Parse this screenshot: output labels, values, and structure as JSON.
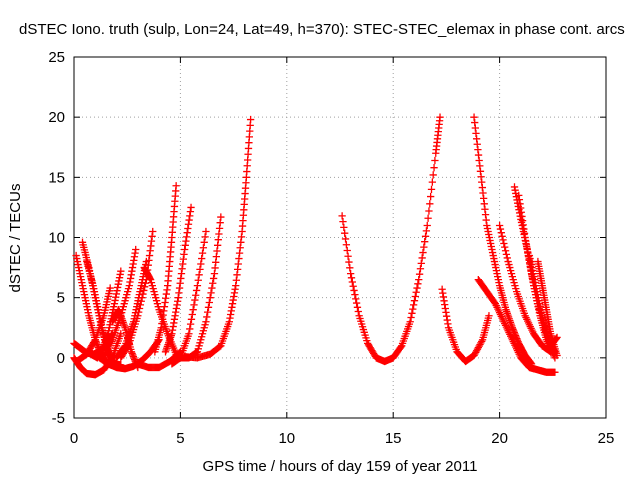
{
  "chart_data": {
    "type": "scatter",
    "title": "dSTEC Iono. truth (sulp, Lon=24, Lat=49, h=370): STEC-STEC_elemax in phase cont. arcs",
    "xlabel": "GPS time / hours of day 159 of year 2011",
    "ylabel": "dSTEC  / TECUs",
    "xlim": [
      0,
      25
    ],
    "ylim": [
      -5,
      25
    ],
    "x_ticks": [
      "0",
      "5",
      "10",
      "15",
      "20",
      "25"
    ],
    "y_ticks": [
      "-5",
      "0",
      "5",
      "10",
      "15",
      "20",
      "25"
    ],
    "grid": true,
    "marker": "+",
    "series_color": "#ff0000",
    "series": [
      {
        "x": [
          0.0,
          0.3,
          0.6,
          0.9,
          1.2,
          1.5,
          1.8
        ],
        "y": [
          1.2,
          0.8,
          0.4,
          0.3,
          0.5,
          1.1,
          2.0
        ]
      },
      {
        "x": [
          0.0,
          0.3,
          0.6,
          1.0,
          1.4,
          1.8,
          2.2
        ],
        "y": [
          0.0,
          -0.8,
          -1.3,
          -1.4,
          -1.0,
          0.0,
          2.0
        ]
      },
      {
        "x": [
          0.1,
          0.4,
          0.7,
          1.0,
          1.3,
          1.6,
          1.9
        ],
        "y": [
          8.5,
          6.0,
          3.5,
          1.5,
          0.2,
          -0.5,
          0.2
        ]
      },
      {
        "x": [
          0.4,
          0.7,
          1.0,
          1.3,
          1.6,
          1.9,
          2.2
        ],
        "y": [
          9.6,
          7.5,
          5.0,
          2.5,
          0.5,
          -0.5,
          -0.6
        ]
      },
      {
        "x": [
          0.6,
          0.9,
          1.2,
          1.5,
          1.8
        ],
        "y": [
          8.0,
          6.0,
          3.5,
          1.0,
          -0.2
        ]
      },
      {
        "x": [
          0.2,
          0.6,
          1.0,
          1.4,
          1.7
        ],
        "y": [
          -0.2,
          0.3,
          1.5,
          3.5,
          5.8
        ]
      },
      {
        "x": [
          0.8,
          1.1,
          1.3,
          1.6,
          1.9,
          2.2
        ],
        "y": [
          0.3,
          0.0,
          0.5,
          2.0,
          4.5,
          7.2
        ]
      },
      {
        "x": [
          1.2,
          1.6,
          2.0,
          2.4,
          2.8,
          3.2,
          3.6,
          4.0
        ],
        "y": [
          0.0,
          -0.5,
          -0.8,
          -0.9,
          -0.7,
          -0.2,
          0.5,
          1.5
        ]
      },
      {
        "x": [
          1.4,
          1.8,
          2.2,
          2.6,
          2.9
        ],
        "y": [
          0.0,
          1.5,
          3.5,
          6.0,
          9.0
        ]
      },
      {
        "x": [
          2.0,
          2.4,
          2.8,
          3.1,
          3.4
        ],
        "y": [
          0.0,
          1.0,
          3.0,
          5.5,
          8.0
        ]
      },
      {
        "x": [
          2.2,
          2.6,
          3.0,
          3.4,
          3.7
        ],
        "y": [
          0.0,
          1.2,
          3.5,
          6.5,
          10.5
        ]
      },
      {
        "x": [
          1.8,
          2.1,
          2.4,
          2.7,
          3.0
        ],
        "y": [
          3.0,
          4.0,
          2.5,
          0.5,
          -0.8
        ]
      },
      {
        "x": [
          3.3,
          3.6,
          4.0,
          4.4,
          4.8
        ],
        "y": [
          7.5,
          6.5,
          4.0,
          2.0,
          0.3
        ]
      },
      {
        "x": [
          3.0,
          3.5,
          4.0,
          4.5,
          5.0
        ],
        "y": [
          -0.5,
          -0.8,
          -0.8,
          -0.3,
          0.5
        ]
      },
      {
        "x": [
          3.8,
          4.1,
          4.4,
          4.6,
          4.8
        ],
        "y": [
          0.5,
          2.5,
          6.0,
          10.0,
          14.3
        ]
      },
      {
        "x": [
          4.3,
          4.6,
          4.9,
          5.2,
          5.5
        ],
        "y": [
          0.5,
          2.0,
          5.0,
          9.0,
          12.5
        ]
      },
      {
        "x": [
          4.6,
          5.0,
          5.4,
          5.8,
          6.2
        ],
        "y": [
          -0.5,
          0.0,
          2.0,
          6.0,
          10.5
        ]
      },
      {
        "x": [
          5.0,
          5.4,
          5.8,
          6.2,
          6.6,
          6.9
        ],
        "y": [
          0.0,
          0.0,
          0.5,
          3.0,
          7.0,
          11.7
        ]
      },
      {
        "x": [
          5.2,
          5.8,
          6.4,
          6.9,
          7.3,
          7.6,
          7.9,
          8.1,
          8.3
        ],
        "y": [
          0.1,
          0.0,
          0.3,
          1.0,
          3.0,
          6.0,
          10.5,
          15.0,
          19.8
        ]
      },
      {
        "x": [
          12.6,
          13.0,
          13.4,
          13.8,
          14.2,
          14.6,
          15.0,
          15.4,
          15.8,
          16.2,
          16.6,
          17.0,
          17.2
        ],
        "y": [
          11.8,
          7.0,
          3.5,
          1.2,
          0.0,
          -0.3,
          0.0,
          1.0,
          3.0,
          6.5,
          11.0,
          17.0,
          20.0
        ]
      },
      {
        "x": [
          17.3,
          17.6,
          18.0,
          18.4,
          18.8,
          19.2,
          19.5
        ],
        "y": [
          5.7,
          2.5,
          0.5,
          -0.3,
          0.2,
          1.5,
          3.5
        ]
      },
      {
        "x": [
          18.8,
          19.1,
          19.4,
          19.7,
          20.0,
          20.3,
          20.6,
          20.9,
          21.2,
          21.5
        ],
        "y": [
          20.0,
          15.5,
          11.0,
          8.5,
          6.0,
          4.0,
          2.5,
          1.2,
          0.2,
          -0.5
        ]
      },
      {
        "x": [
          19.0,
          19.4,
          19.8,
          20.2,
          20.6,
          21.0,
          21.4,
          21.8,
          22.2,
          22.6
        ],
        "y": [
          6.5,
          5.5,
          4.5,
          3.0,
          1.5,
          0.0,
          -0.8,
          -1.0,
          -1.2,
          -1.2
        ]
      },
      {
        "x": [
          20.0,
          20.4,
          20.8,
          21.2,
          21.6,
          22.0,
          22.4
        ],
        "y": [
          11.0,
          8.0,
          5.5,
          3.5,
          2.0,
          1.0,
          0.5
        ]
      },
      {
        "x": [
          20.7,
          21.0,
          21.3,
          21.6,
          21.9,
          22.2,
          22.6
        ],
        "y": [
          14.2,
          11.5,
          9.0,
          6.0,
          3.5,
          1.5,
          0.0
        ]
      },
      {
        "x": [
          20.9,
          21.2,
          21.5,
          21.8,
          22.1,
          22.4,
          22.7
        ],
        "y": [
          13.5,
          10.0,
          7.0,
          4.5,
          2.5,
          1.0,
          1.7
        ]
      },
      {
        "x": [
          21.4,
          21.7,
          22.0,
          22.3,
          22.6
        ],
        "y": [
          8.5,
          6.0,
          3.5,
          1.5,
          0.5
        ]
      },
      {
        "x": [
          21.8,
          22.0,
          22.2,
          22.4,
          22.7
        ],
        "y": [
          8.0,
          6.0,
          4.0,
          2.0,
          0.2
        ]
      }
    ]
  }
}
